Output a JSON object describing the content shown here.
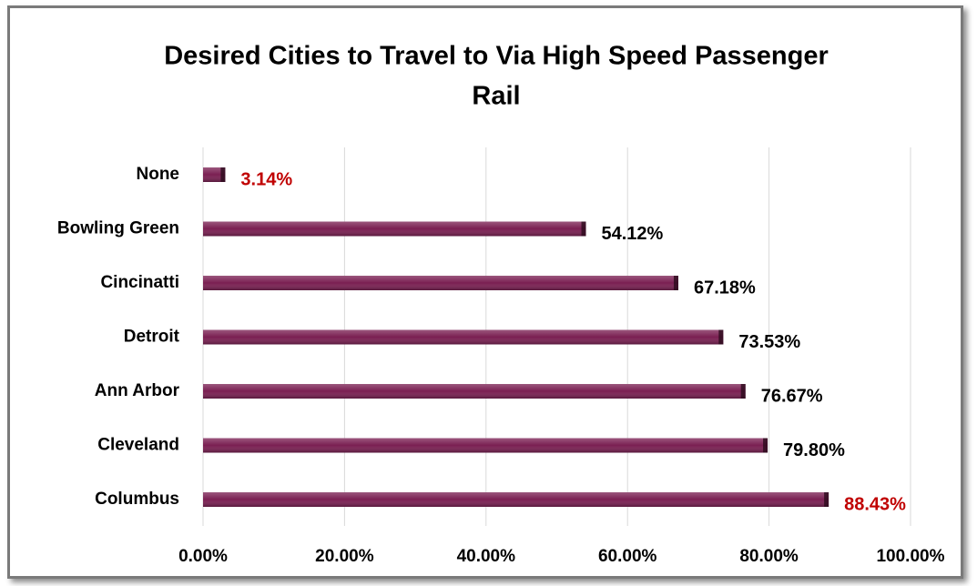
{
  "chart_data": {
    "type": "bar",
    "orientation": "horizontal",
    "title": "Desired Cities to Travel to Via High Speed Passenger Rail",
    "categories": [
      "None",
      "Bowling Green",
      "Cincinatti",
      "Detroit",
      "Ann Arbor",
      "Cleveland",
      "Columbus"
    ],
    "values": [
      3.14,
      54.12,
      67.18,
      73.53,
      76.67,
      79.8,
      88.43
    ],
    "value_labels": [
      "3.14%",
      "54.12%",
      "67.18%",
      "73.53%",
      "76.67%",
      "79.80%",
      "88.43%"
    ],
    "value_label_colors": [
      "#c00000",
      "#000000",
      "#000000",
      "#000000",
      "#000000",
      "#000000",
      "#c00000"
    ],
    "color": "#7a1f52",
    "xlim": [
      0,
      100
    ],
    "xticks": [
      {
        "value": 0,
        "label": "0.00%"
      },
      {
        "value": 20,
        "label": "20.00%"
      },
      {
        "value": 40,
        "label": "40.00%"
      },
      {
        "value": 60,
        "label": "60.00%"
      },
      {
        "value": 80,
        "label": "80.00%"
      },
      {
        "value": 100,
        "label": "100.00%"
      }
    ],
    "grid": true
  }
}
